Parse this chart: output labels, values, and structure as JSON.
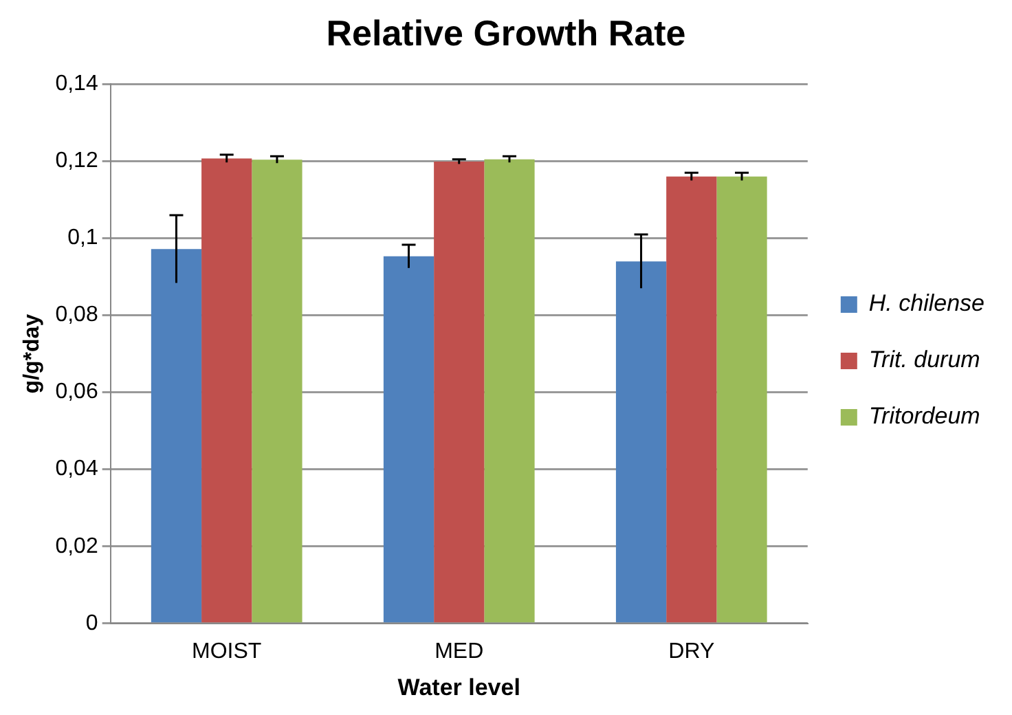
{
  "chart_data": {
    "type": "bar",
    "title": "Relative Growth Rate",
    "xlabel": "Water level",
    "ylabel": "g/g*day",
    "categories": [
      "MOIST",
      "MED",
      "DRY"
    ],
    "series": [
      {
        "name": "H. chilense",
        "color": "#4f81bd",
        "values": [
          0.0972,
          0.0953,
          0.094
        ],
        "errors": [
          0.0088,
          0.003,
          0.007
        ]
      },
      {
        "name": "Trit. durum",
        "color": "#c0504d",
        "values": [
          0.1207,
          0.1199,
          0.116
        ],
        "errors": [
          0.001,
          0.0006,
          0.001
        ]
      },
      {
        "name": "Tritordeum",
        "color": "#9bbb59",
        "values": [
          0.1204,
          0.1205,
          0.116
        ],
        "errors": [
          0.0009,
          0.0008,
          0.001
        ]
      }
    ],
    "ylim": [
      0,
      0.14
    ],
    "yticks": [
      0,
      {
        "value": 0.02,
        "label": "0,02"
      },
      {
        "value": 0.04,
        "label": "0,04"
      },
      {
        "value": 0.06,
        "label": "0,06"
      },
      {
        "value": 0.08,
        "label": "0,08"
      },
      {
        "value": 0.1,
        "label": "0,1"
      },
      {
        "value": 0.12,
        "label": "0,12"
      },
      {
        "value": 0.14,
        "label": "0,14"
      }
    ],
    "grid": "y",
    "legend": "right"
  }
}
